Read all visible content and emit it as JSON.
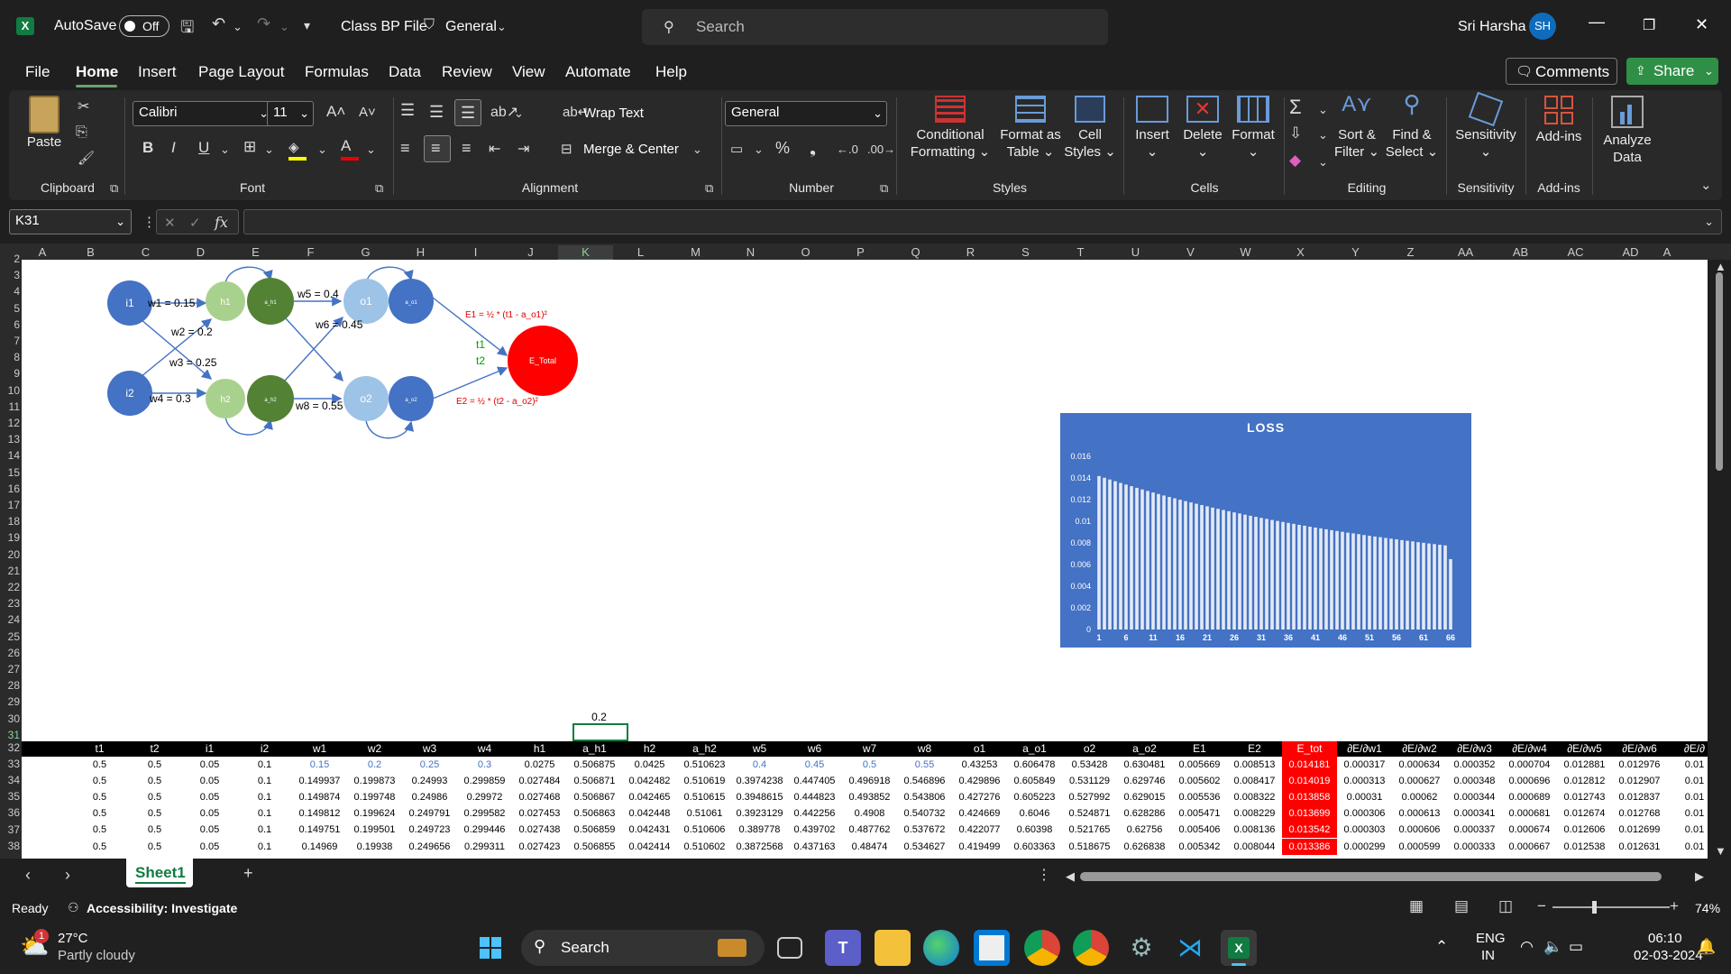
{
  "titlebar": {
    "autosave_label": "AutoSave",
    "autosave_state": "Off",
    "file_name": "Class BP File",
    "sensitivity": "General",
    "search_placeholder": "Search",
    "user_name": "Sri Harsha",
    "user_initials": "SH"
  },
  "menu": {
    "tabs": [
      "File",
      "Home",
      "Insert",
      "Page Layout",
      "Formulas",
      "Data",
      "Review",
      "View",
      "Automate",
      "Help"
    ],
    "comments": "Comments",
    "share": "Share"
  },
  "ribbon": {
    "clipboard": {
      "paste": "Paste",
      "label": "Clipboard"
    },
    "font": {
      "name": "Calibri",
      "size": "11",
      "label": "Font"
    },
    "alignment": {
      "wrap": "Wrap Text",
      "merge": "Merge & Center",
      "label": "Alignment"
    },
    "number": {
      "format": "General",
      "label": "Number"
    },
    "styles": {
      "cond1": "Conditional",
      "cond2": "Formatting",
      "fmt1": "Format as",
      "fmt2": "Table",
      "cell1": "Cell",
      "cell2": "Styles",
      "label": "Styles"
    },
    "cells": {
      "insert": "Insert",
      "delete": "Delete",
      "format": "Format",
      "label": "Cells"
    },
    "editing": {
      "sort1": "Sort &",
      "sort2": "Filter",
      "find1": "Find &",
      "find2": "Select",
      "label": "Editing"
    },
    "sensitivity": {
      "btn": "Sensitivity",
      "label": "Sensitivity"
    },
    "addins": {
      "btn": "Add-ins",
      "label": "Add-ins"
    },
    "analyze": {
      "l1": "Analyze",
      "l2": "Data"
    }
  },
  "formula_bar": {
    "name_box": "K31",
    "fx": "fx",
    "value": ""
  },
  "columns": [
    "A",
    "B",
    "C",
    "D",
    "E",
    "F",
    "G",
    "H",
    "I",
    "J",
    "K",
    "L",
    "M",
    "N",
    "O",
    "P",
    "Q",
    "R",
    "S",
    "T",
    "U",
    "V",
    "W",
    "X",
    "Y",
    "Z",
    "AA",
    "AB",
    "AC",
    "AD",
    "A"
  ],
  "rows": [
    "2",
    "3",
    "4",
    "5",
    "6",
    "7",
    "8",
    "9",
    "10",
    "11",
    "12",
    "13",
    "14",
    "15",
    "16",
    "17",
    "18",
    "19",
    "20",
    "21",
    "22",
    "23",
    "24",
    "25",
    "26",
    "27",
    "28",
    "29",
    "30",
    "31",
    "32",
    "33",
    "34",
    "35",
    "36",
    "37",
    "38"
  ],
  "diagram": {
    "i1": "i1",
    "i2": "i2",
    "h1": "h1",
    "h2": "h2",
    "ah1": "a_h1",
    "ah2": "a_h2",
    "o1": "o1",
    "o2": "o2",
    "ao1": "a_o1",
    "ao2": "a_o2",
    "w1": "w1 = 0.15",
    "w2": "w2 = 0.2",
    "w3": "w3 = 0.25",
    "w4": "w4 = 0.3",
    "w5": "w5 = 0.4",
    "w6": "w6 = 0.45",
    "w8": "w8 = 0.55",
    "e1": "E1 = ½ * (t1 - a_o1)²",
    "e2": "E2 = ½ * (t2 - a_o2)²",
    "t1": "t1",
    "t2": "t2",
    "etotal": "E_Total"
  },
  "k30_value": "0.2",
  "chart_data": {
    "type": "bar",
    "title": "LOSS",
    "x_tick_labels": [
      "1",
      "6",
      "11",
      "16",
      "21",
      "26",
      "31",
      "36",
      "41",
      "46",
      "51",
      "56",
      "61",
      "66"
    ],
    "y_tick_labels": [
      "0",
      "0.002",
      "0.004",
      "0.006",
      "0.008",
      "0.01",
      "0.012",
      "0.014",
      "0.016"
    ],
    "ylim": [
      0,
      0.016
    ],
    "n_points": 66,
    "start_value": 0.01418,
    "end_value": 0.0065,
    "values": [
      0.01418,
      0.01402,
      0.01386,
      0.0137,
      0.01354,
      0.01339,
      0.01324,
      0.01309,
      0.01294,
      0.0128,
      0.01266,
      0.01252,
      0.01238,
      0.01225,
      0.01212,
      0.01199,
      0.01186,
      0.01174,
      0.01162,
      0.0115,
      0.01138,
      0.01126,
      0.01115,
      0.01104,
      0.01093,
      0.01082,
      0.01072,
      0.01061,
      0.01051,
      0.01041,
      0.01031,
      0.01022,
      0.01012,
      0.01003,
      0.00994,
      0.00985,
      0.00976,
      0.00967,
      0.00959,
      0.0095,
      0.00942,
      0.00934,
      0.00926,
      0.00918,
      0.0091,
      0.00903,
      0.00895,
      0.00888,
      0.00881,
      0.00873,
      0.00866,
      0.00859,
      0.00853,
      0.00846,
      0.00839,
      0.00833,
      0.00826,
      0.0082,
      0.00814,
      0.00807,
      0.00801,
      0.00795,
      0.00789,
      0.00783,
      0.00777,
      0.0065
    ],
    "colors": {
      "background": "#4472c4",
      "bars": "#ffffff"
    }
  },
  "table": {
    "headers": [
      "t1",
      "t2",
      "i1",
      "i2",
      "w1",
      "w2",
      "w3",
      "w4",
      "h1",
      "a_h1",
      "h2",
      "a_h2",
      "w5",
      "w6",
      "w7",
      "w8",
      "o1",
      "a_o1",
      "o2",
      "a_o2",
      "E1",
      "E2",
      "E_tot",
      "∂E/∂w1",
      "∂E/∂w2",
      "∂E/∂w3",
      "∂E/∂w4",
      "∂E/∂w5",
      "∂E/∂w6",
      "∂E/∂"
    ],
    "rows": [
      [
        "0.5",
        "0.5",
        "0.05",
        "0.1",
        "0.15",
        "0.2",
        "0.25",
        "0.3",
        "0.0275",
        "0.506875",
        "0.0425",
        "0.510623",
        "0.4",
        "0.45",
        "0.5",
        "0.55",
        "0.43253",
        "0.606478",
        "0.53428",
        "0.630481",
        "0.005669",
        "0.008513",
        "0.014181",
        "0.000317",
        "0.000634",
        "0.000352",
        "0.000704",
        "0.012881",
        "0.012976",
        "0.01"
      ],
      [
        "0.5",
        "0.5",
        "0.05",
        "0.1",
        "0.149937",
        "0.199873",
        "0.24993",
        "0.299859",
        "0.027484",
        "0.506871",
        "0.042482",
        "0.510619",
        "0.3974238",
        "0.447405",
        "0.496918",
        "0.546896",
        "0.429896",
        "0.605849",
        "0.531129",
        "0.629746",
        "0.005602",
        "0.008417",
        "0.014019",
        "0.000313",
        "0.000627",
        "0.000348",
        "0.000696",
        "0.012812",
        "0.012907",
        "0.01"
      ],
      [
        "0.5",
        "0.5",
        "0.05",
        "0.1",
        "0.149874",
        "0.199748",
        "0.24986",
        "0.29972",
        "0.027468",
        "0.506867",
        "0.042465",
        "0.510615",
        "0.3948615",
        "0.444823",
        "0.493852",
        "0.543806",
        "0.427276",
        "0.605223",
        "0.527992",
        "0.629015",
        "0.005536",
        "0.008322",
        "0.013858",
        "0.00031",
        "0.00062",
        "0.000344",
        "0.000689",
        "0.012743",
        "0.012837",
        "0.01"
      ],
      [
        "0.5",
        "0.5",
        "0.05",
        "0.1",
        "0.149812",
        "0.199624",
        "0.249791",
        "0.299582",
        "0.027453",
        "0.506863",
        "0.042448",
        "0.51061",
        "0.3923129",
        "0.442256",
        "0.4908",
        "0.540732",
        "0.424669",
        "0.6046",
        "0.524871",
        "0.628286",
        "0.005471",
        "0.008229",
        "0.013699",
        "0.000306",
        "0.000613",
        "0.000341",
        "0.000681",
        "0.012674",
        "0.012768",
        "0.01"
      ],
      [
        "0.5",
        "0.5",
        "0.05",
        "0.1",
        "0.149751",
        "0.199501",
        "0.249723",
        "0.299446",
        "0.027438",
        "0.506859",
        "0.042431",
        "0.510606",
        "0.389778",
        "0.439702",
        "0.487762",
        "0.537672",
        "0.422077",
        "0.60398",
        "0.521765",
        "0.62756",
        "0.005406",
        "0.008136",
        "0.013542",
        "0.000303",
        "0.000606",
        "0.000337",
        "0.000674",
        "0.012606",
        "0.012699",
        "0.01"
      ],
      [
        "0.5",
        "0.5",
        "0.05",
        "0.1",
        "0.14969",
        "0.19938",
        "0.249656",
        "0.299311",
        "0.027423",
        "0.506855",
        "0.042414",
        "0.510602",
        "0.3872568",
        "0.437163",
        "0.48474",
        "0.534627",
        "0.419499",
        "0.603363",
        "0.518675",
        "0.626838",
        "0.005342",
        "0.008044",
        "0.013386",
        "0.000299",
        "0.000599",
        "0.000333",
        "0.000667",
        "0.012538",
        "0.012631",
        "0.01"
      ]
    ]
  },
  "sheets": {
    "active": "Sheet1"
  },
  "status": {
    "ready": "Ready",
    "accessibility": "Accessibility: Investigate",
    "zoom": "74%"
  },
  "taskbar": {
    "temp": "27°C",
    "weather": "Partly cloudy",
    "badge": "1",
    "search": "Search",
    "lang1": "ENG",
    "lang2": "IN",
    "time": "06:10",
    "date": "02-03-2024"
  }
}
